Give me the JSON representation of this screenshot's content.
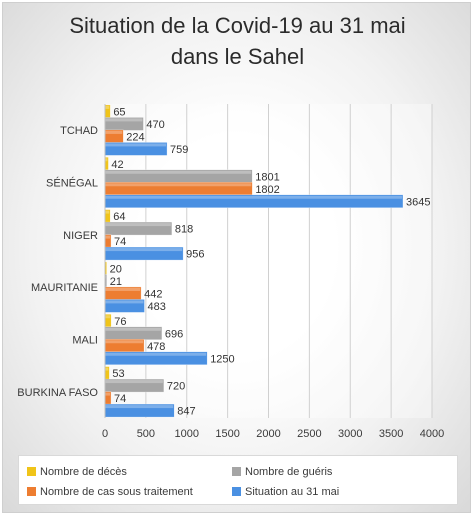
{
  "title_line1": "Situation de la Covid-19 au 31 mai",
  "title_line2": "dans le Sahel",
  "chart_data": {
    "type": "bar",
    "orientation": "horizontal",
    "title": "Situation de la Covid-19 au 31 mai dans le Sahel",
    "categories": [
      "TCHAD",
      "SÉNÉGAL",
      "NIGER",
      "MAURITANIE",
      "MALI",
      "BURKINA FASO"
    ],
    "series": [
      {
        "name": "Nombre de décès",
        "color": "#f0c419",
        "values": [
          65,
          42,
          64,
          20,
          76,
          53
        ]
      },
      {
        "name": "Nombre de guéris",
        "color": "#a5a5a5",
        "values": [
          470,
          1801,
          818,
          21,
          696,
          720
        ]
      },
      {
        "name": "Nombre de cas sous traitement",
        "color": "#ed7d31",
        "values": [
          224,
          1802,
          74,
          442,
          478,
          74
        ]
      },
      {
        "name": "Situation au 31 mai",
        "color": "#4a90e2",
        "values": [
          759,
          3645,
          956,
          483,
          1250,
          847
        ]
      }
    ],
    "labels": [
      [
        "65",
        "470",
        "224",
        "759"
      ],
      [
        "42",
        "1801",
        "1802",
        "3645"
      ],
      [
        "64",
        "818",
        "74",
        "956"
      ],
      [
        "20",
        "21",
        "442",
        "483"
      ],
      [
        "76",
        "696",
        "478",
        "1250"
      ],
      [
        "53",
        "720",
        "74",
        "847"
      ]
    ],
    "xticks": [
      "0",
      "500",
      "1000",
      "1500",
      "2000",
      "2500",
      "3000",
      "3500",
      "4000"
    ],
    "xlim": [
      0,
      4000
    ],
    "grid": "vertical",
    "legend_position": "bottom"
  }
}
